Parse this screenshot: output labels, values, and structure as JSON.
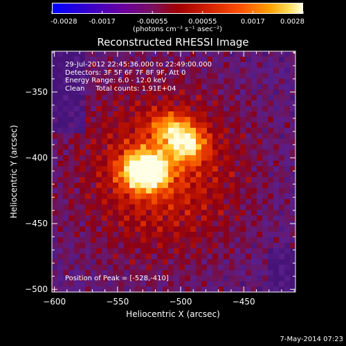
{
  "colorbar": {
    "ticks": [
      "-0.0028",
      "-0.0017",
      "-0.00055",
      "0.00055",
      "0.0017",
      "0.0028"
    ],
    "units_label": "(photons cm⁻² s⁻¹ asec⁻²)",
    "min": -0.0028,
    "max": 0.0028
  },
  "chart_data": {
    "type": "heatmap",
    "title": "Reconstructed RHESSI Image",
    "xlabel": "Heliocentric X (arcsec)",
    "ylabel": "Heliocentric Y (arcsec)",
    "xlim": [
      -602,
      -409
    ],
    "ylim": [
      -502,
      -319
    ],
    "xticks": [
      "−600",
      "−550",
      "−500",
      "−450"
    ],
    "xtick_values": [
      -600,
      -550,
      -500,
      -450
    ],
    "yticks": [
      "−350",
      "−400",
      "−450",
      "−500"
    ],
    "ytick_values": [
      -350,
      -400,
      -450,
      -500
    ],
    "annotations": [
      "29-Jul-2012 22:45:36.000 to 22:49:00.000",
      "Detectors: 3F 5F 6F 7F 8F 9F, Att 0",
      "Energy Range: 6.0 - 12.0 keV",
      "Clean     Total counts: 1.91E+04"
    ],
    "peak_label": "Position of Peak = [-528,-410]",
    "peak_position": [
      -528,
      -410
    ],
    "colormap": [
      "#0000ff",
      "#5a00a8",
      "#a00000",
      "#ff4000",
      "#ffb000",
      "#ffffd0"
    ]
  },
  "footer": "7-May-2014 07:23"
}
